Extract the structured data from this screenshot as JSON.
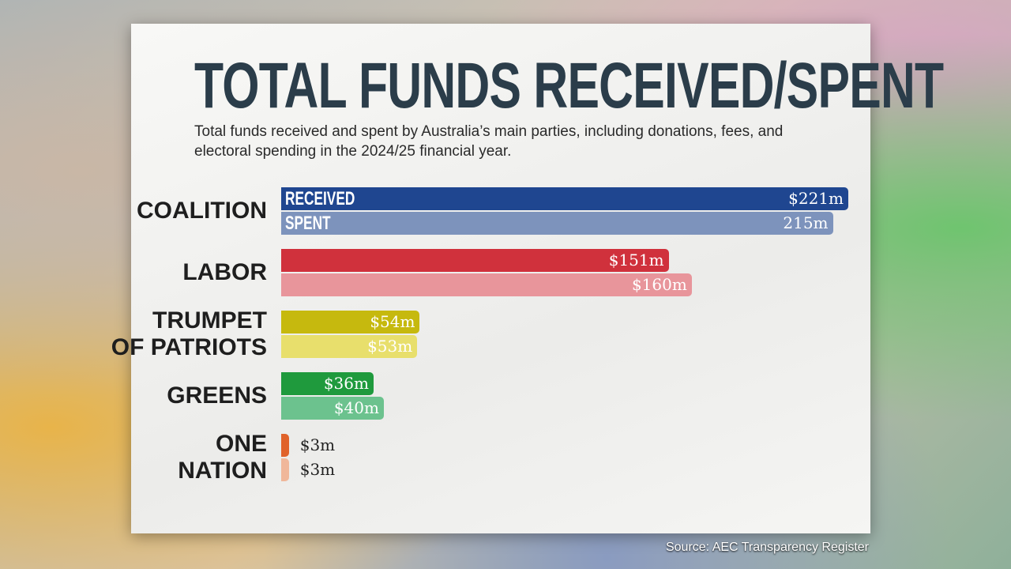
{
  "chart_data": {
    "type": "bar",
    "orientation": "horizontal",
    "title": "TOTAL FUNDS RECEIVED/SPENT",
    "subtitle": "Total funds received and spent by Australia’s main parties, including donations, fees, and electoral spending in the 2024/25 financial year.",
    "source": "Source: AEC Transparency Register",
    "categories": [
      "COALITION",
      "LABOR",
      "TRUMPET\nOF PATRIOTS",
      "GREENS",
      "ONE\nNATION"
    ],
    "series": [
      {
        "name": "RECEIVED",
        "colors": [
          "#1f4690",
          "#d0313c",
          "#c6b90e",
          "#1f9a3d",
          "#e0622a"
        ],
        "values": [
          221,
          151,
          54,
          36,
          3
        ],
        "value_labels": [
          "$221m",
          "$151m",
          "$54m",
          "$36m",
          "$3m"
        ]
      },
      {
        "name": "SPENT",
        "colors": [
          "#7d93bc",
          "#e8959b",
          "#e8df6c",
          "#6cc28e",
          "#f0b79a"
        ],
        "values": [
          215,
          160,
          53,
          40,
          3
        ],
        "value_labels": [
          "215m",
          "$160m",
          "$53m",
          "$40m",
          "$3m"
        ]
      }
    ]
  }
}
